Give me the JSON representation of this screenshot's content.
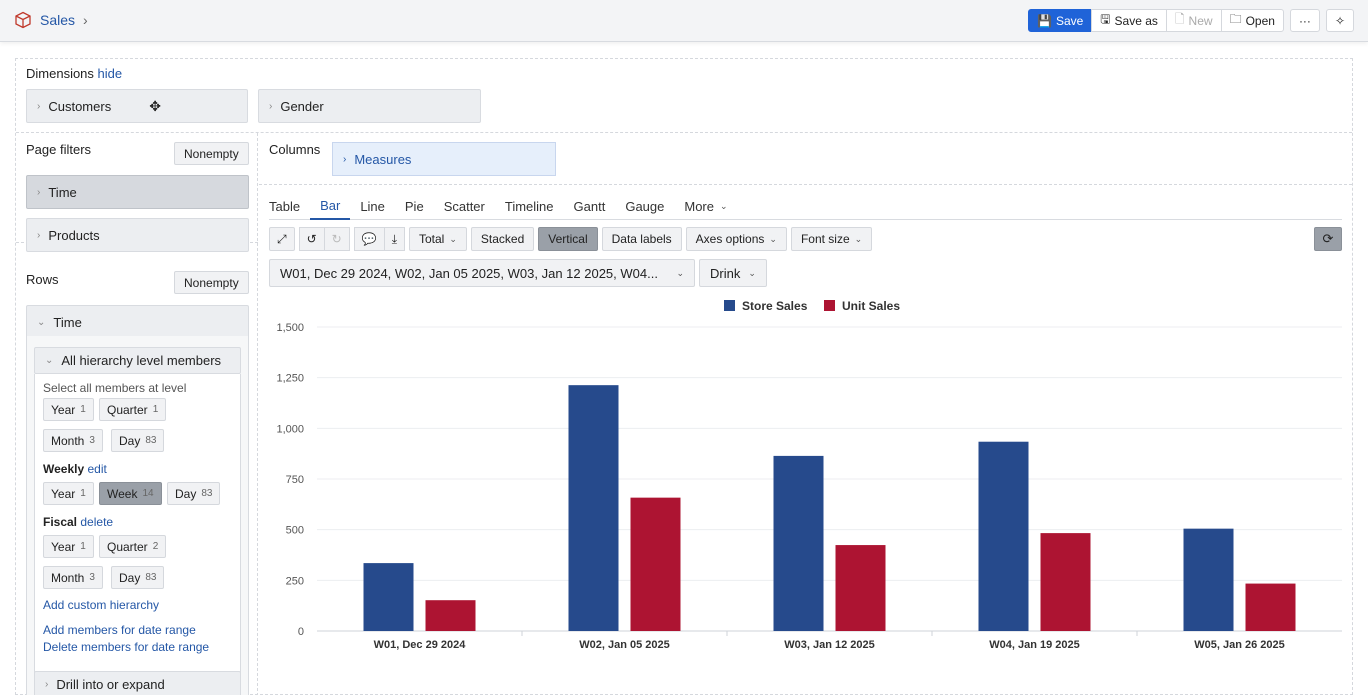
{
  "header": {
    "title": "Sales",
    "buttons": {
      "save": "Save",
      "save_as": "Save as",
      "new": "New",
      "open": "Open",
      "more": "···"
    }
  },
  "dimensions": {
    "label": "Dimensions",
    "hide_link": "hide",
    "items": [
      "Customers",
      "Gender"
    ]
  },
  "page_filters": {
    "label": "Page filters",
    "nonempty": "Nonempty",
    "items": [
      "Time",
      "Products"
    ]
  },
  "rows": {
    "label": "Rows",
    "nonempty": "Nonempty",
    "time": "Time",
    "hierarchy": {
      "title": "All hierarchy level members",
      "hint": "Select all members at level",
      "default_levels": [
        {
          "name": "Year",
          "count": "1"
        },
        {
          "name": "Quarter",
          "count": "1"
        },
        {
          "name": "Month",
          "count": "3"
        },
        {
          "name": "Day",
          "count": "83"
        }
      ],
      "weekly": {
        "label": "Weekly",
        "action": "edit",
        "levels": [
          {
            "name": "Year",
            "count": "1"
          },
          {
            "name": "Week",
            "count": "14"
          },
          {
            "name": "Day",
            "count": "83"
          }
        ]
      },
      "fiscal": {
        "label": "Fiscal",
        "action": "delete",
        "levels": [
          {
            "name": "Year",
            "count": "1"
          },
          {
            "name": "Quarter",
            "count": "2"
          },
          {
            "name": "Month",
            "count": "3"
          },
          {
            "name": "Day",
            "count": "83"
          }
        ]
      },
      "links": [
        "Add custom hierarchy",
        "Add members for date range",
        "Delete members for date range"
      ]
    },
    "drill": "Drill into or expand"
  },
  "columns": {
    "label": "Columns",
    "measures": "Measures"
  },
  "chart_tabs": [
    "Table",
    "Bar",
    "Line",
    "Pie",
    "Scatter",
    "Timeline",
    "Gantt",
    "Gauge",
    "More"
  ],
  "active_tab": "Bar",
  "chart_toolbar": {
    "total": "Total",
    "stacked": "Stacked",
    "vertical": "Vertical",
    "data_labels": "Data labels",
    "axes_options": "Axes options",
    "font_size": "Font size"
  },
  "filters": {
    "time": "W01, Dec 29 2024, W02, Jan 05 2025, W03, Jan 12 2025, W04...",
    "product": "Drink"
  },
  "colors": {
    "store_sales": "#264a8c",
    "unit_sales": "#ad1432",
    "accent": "#1f63d8"
  },
  "chart_data": {
    "type": "bar",
    "categories": [
      "W01, Dec 29 2024",
      "W02, Jan 05 2025",
      "W03, Jan 12 2025",
      "W04, Jan 19 2025",
      "W05, Jan 26 2025"
    ],
    "series": [
      {
        "name": "Store Sales",
        "values": [
          335,
          1213,
          864,
          934,
          505
        ]
      },
      {
        "name": "Unit Sales",
        "values": [
          152,
          658,
          424,
          483,
          234
        ]
      }
    ],
    "ylim": [
      0,
      1500
    ],
    "yticks": [
      "0",
      "250",
      "500",
      "750",
      "1,000",
      "1,250",
      "1,500"
    ],
    "legend": "top-center",
    "grid": true
  }
}
